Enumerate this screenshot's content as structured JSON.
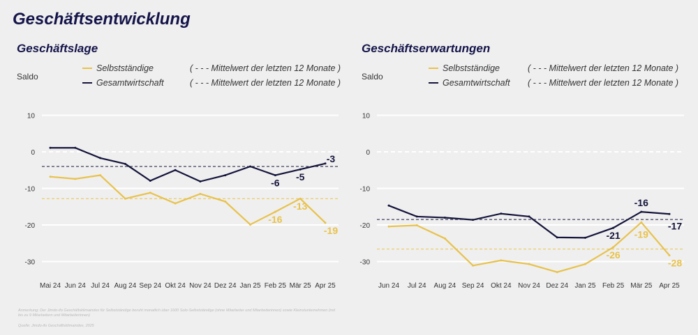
{
  "title": "Geschäftsentwicklung",
  "colors": {
    "navy": "#14143c",
    "yellow": "#e8c24c",
    "grid": "#ffffff"
  },
  "footnote": "Anmerkung: Der Jimdo-ifo Geschäftsklimaindex für Selbstständige beruht monatlich über 1600 Solo-Selbstständige (ohne Mitarbeiter und Mitarbeiterinnen) sowie Kleinstunternehmen (mit bis zu 9 Mitarbeitern und Mitarbeiterinnen)",
  "source": "Quelle: Jimdo-ifo Geschäftsklimaindex, 2025",
  "chart_data": [
    {
      "type": "line",
      "title": "Geschäftslage",
      "ylabel": "Saldo",
      "ylim": [
        -30,
        10
      ],
      "yticks": [
        10,
        0,
        -10,
        -20,
        -30
      ],
      "grid": true,
      "legend": [
        {
          "name": "Selbstständige",
          "mean": "( - - - Mittelwert der letzten 12 Monate )"
        },
        {
          "name": "Gesamtwirtschaft",
          "mean": "( - - - Mittelwert der letzten 12 Monate )"
        }
      ],
      "categories": [
        "Mai 24",
        "Jun 24",
        "Jul 24",
        "Aug 24",
        "Sep 24",
        "Okt 24",
        "Nov 24",
        "Dez 24",
        "Jan 25",
        "Feb 25",
        "Mär 25",
        "Apr 25"
      ],
      "series": [
        {
          "name": "Selbstständige",
          "color": "#e8c24c",
          "values": [
            -6.8,
            -7.4,
            -6.4,
            -12.8,
            -11.2,
            -14.1,
            -11.5,
            -13.6,
            -19.9,
            -16.4,
            -12.8,
            -19.4
          ],
          "mean": -12.8,
          "labels": [
            {
              "i": 9,
              "text": "-16"
            },
            {
              "i": 10,
              "text": "-13"
            },
            {
              "i": 11,
              "text": "-19"
            }
          ]
        },
        {
          "name": "Gesamtwirtschaft",
          "color": "#14143c",
          "values": [
            1.1,
            1.1,
            -1.7,
            -3.3,
            -7.9,
            -5.0,
            -8.1,
            -6.4,
            -4.0,
            -6.4,
            -4.8,
            -3.2
          ],
          "mean": -4.0,
          "labels": [
            {
              "i": 9,
              "text": "-6"
            },
            {
              "i": 10,
              "text": "-5"
            },
            {
              "i": 11,
              "text": "-3"
            }
          ]
        }
      ]
    },
    {
      "type": "line",
      "title": "Geschäftserwartungen",
      "ylabel": "Saldo",
      "ylim": [
        -30,
        10
      ],
      "yticks": [
        10,
        0,
        -10,
        -20,
        -30
      ],
      "grid": true,
      "legend": [
        {
          "name": "Selbstständige",
          "mean": "( - - - Mittelwert der letzten 12 Monate )"
        },
        {
          "name": "Gesamtwirtschaft",
          "mean": "( - - - Mittelwert der letzten 12 Monate )"
        }
      ],
      "categories": [
        "Jun 24",
        "Jul 24",
        "Aug 24",
        "Sep 24",
        "Okt 24",
        "Nov 24",
        "Dez 24",
        "Jan 25",
        "Feb 25",
        "Mär 25",
        "Apr 25"
      ],
      "series": [
        {
          "name": "Selbstständige",
          "color": "#e8c24c",
          "values": [
            -20.4,
            -20.1,
            -23.7,
            -31.1,
            -29.7,
            -30.7,
            -32.9,
            -30.7,
            -26.1,
            -19.3,
            -28.3
          ],
          "mean": -26.6,
          "labels": [
            {
              "i": 8,
              "text": "-26"
            },
            {
              "i": 9,
              "text": "-19"
            },
            {
              "i": 10,
              "text": "-28"
            }
          ]
        },
        {
          "name": "Gesamtwirtschaft",
          "color": "#14143c",
          "values": [
            -14.7,
            -17.7,
            -18.0,
            -18.6,
            -16.9,
            -17.7,
            -23.4,
            -23.5,
            -20.8,
            -16.4,
            -17.0
          ],
          "mean": -18.5,
          "labels": [
            {
              "i": 8,
              "text": "-21"
            },
            {
              "i": 9,
              "text": "-16"
            },
            {
              "i": 10,
              "text": "-17"
            }
          ]
        }
      ]
    }
  ]
}
